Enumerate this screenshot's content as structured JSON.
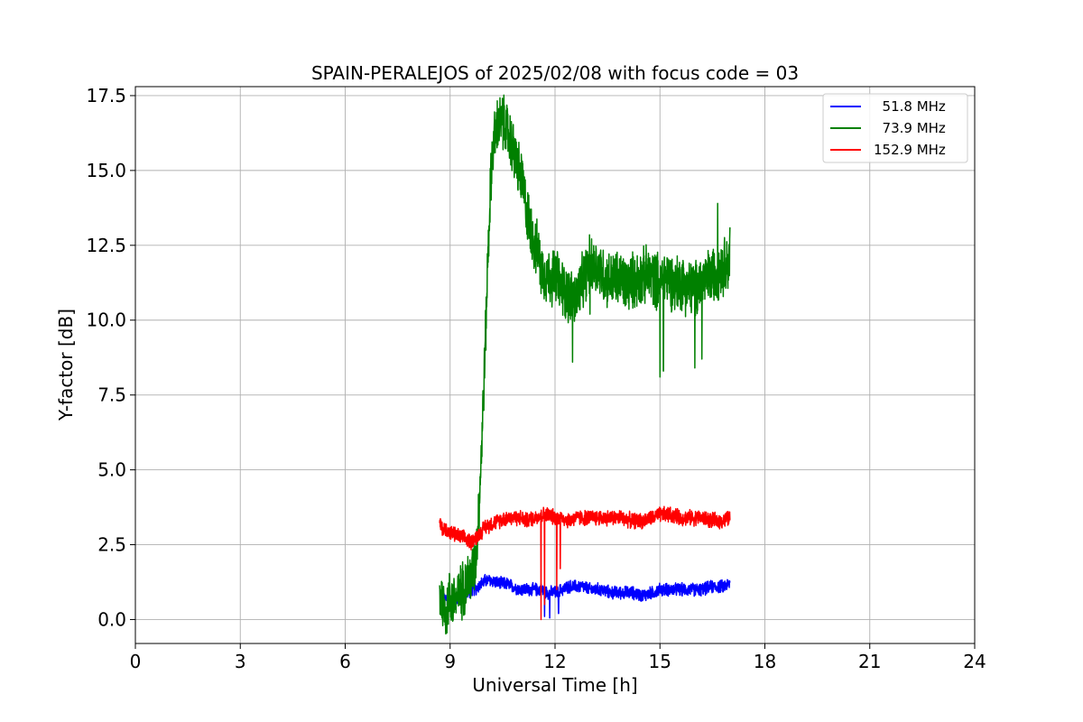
{
  "chart_data": {
    "type": "line",
    "title": "SPAIN-PERALEJOS of 2025/02/08 with focus code = 03",
    "xlabel": "Universal Time [h]",
    "ylabel": "Y-factor [dB]",
    "xlim": [
      0,
      24
    ],
    "ylim": [
      -0.8,
      17.8
    ],
    "xticks": [
      0,
      3,
      6,
      9,
      12,
      15,
      18,
      21,
      24
    ],
    "xtick_labels": [
      "0",
      "3",
      "6",
      "9",
      "12",
      "15",
      "18",
      "21",
      "24"
    ],
    "yticks": [
      0,
      2.5,
      5,
      7.5,
      10,
      12.5,
      15,
      17.5
    ],
    "ytick_labels": [
      "0.0",
      "2.5",
      "5.0",
      "7.5",
      "10.0",
      "12.5",
      "15.0",
      "17.5"
    ],
    "grid": true,
    "legend_position": "top-right",
    "series": [
      {
        "name": "  51.8 MHz",
        "color": "#0000ff",
        "x": [
          8.7,
          8.8,
          8.9,
          9.0,
          9.1,
          9.2,
          9.3,
          9.4,
          9.5,
          9.6,
          9.7,
          9.8,
          9.9,
          10.0,
          10.2,
          10.4,
          10.6,
          10.8,
          11.0,
          11.2,
          11.4,
          11.6,
          11.8,
          12.0,
          12.2,
          12.4,
          12.6,
          12.8,
          13.0,
          13.3,
          13.6,
          13.9,
          14.2,
          14.5,
          14.8,
          15.0,
          15.3,
          15.6,
          15.9,
          16.2,
          16.5,
          16.8,
          17.0
        ],
        "y": [
          0.9,
          0.8,
          0.7,
          0.5,
          0.6,
          0.7,
          0.9,
          0.8,
          0.9,
          1.0,
          1.0,
          1.1,
          1.2,
          1.3,
          1.3,
          1.2,
          1.2,
          1.1,
          1.0,
          1.0,
          1.0,
          1.0,
          0.9,
          0.9,
          1.0,
          1.1,
          1.1,
          1.1,
          1.0,
          1.0,
          0.9,
          0.9,
          0.9,
          0.8,
          0.9,
          1.0,
          1.0,
          1.0,
          1.0,
          1.0,
          1.1,
          1.1,
          1.2
        ],
        "noise": 0.25,
        "spikes": [
          {
            "x": 11.7,
            "y": 0.1
          },
          {
            "x": 11.85,
            "y": 0.05
          },
          {
            "x": 12.1,
            "y": 0.2
          }
        ]
      },
      {
        "name": "  73.9 MHz",
        "color": "#008000",
        "x": [
          8.7,
          8.8,
          8.9,
          9.0,
          9.1,
          9.2,
          9.3,
          9.4,
          9.5,
          9.6,
          9.7,
          9.75,
          9.8,
          9.85,
          9.9,
          9.95,
          10.0,
          10.05,
          10.1,
          10.15,
          10.2,
          10.3,
          10.4,
          10.5,
          10.6,
          10.7,
          10.8,
          10.9,
          11.0,
          11.1,
          11.2,
          11.3,
          11.4,
          11.5,
          11.6,
          11.8,
          12.0,
          12.2,
          12.4,
          12.6,
          12.8,
          13.0,
          13.2,
          13.4,
          13.6,
          13.8,
          14.0,
          14.2,
          14.4,
          14.6,
          14.8,
          15.0,
          15.2,
          15.4,
          15.6,
          15.8,
          16.0,
          16.2,
          16.4,
          16.6,
          16.8,
          17.0
        ],
        "y": [
          0.9,
          0.5,
          0.3,
          0.8,
          0.6,
          0.7,
          0.9,
          1.1,
          1.3,
          1.4,
          1.8,
          2.3,
          3.2,
          4.4,
          5.8,
          7.4,
          9.0,
          11.0,
          12.8,
          14.3,
          15.5,
          16.3,
          16.6,
          16.6,
          16.4,
          16.1,
          15.7,
          15.3,
          14.9,
          14.3,
          13.6,
          13.1,
          12.6,
          12.3,
          11.8,
          11.4,
          11.5,
          11.1,
          10.8,
          10.7,
          11.3,
          11.9,
          11.8,
          11.5,
          11.3,
          11.4,
          11.2,
          11.3,
          11.4,
          11.5,
          11.4,
          11.3,
          11.5,
          11.2,
          11.3,
          11.1,
          11.0,
          11.3,
          11.4,
          11.6,
          11.8,
          12.0
        ],
        "noise": 1.1,
        "spikes": [
          {
            "x": 12.5,
            "y": 8.6
          },
          {
            "x": 13.0,
            "y": 10.2
          },
          {
            "x": 15.0,
            "y": 8.1
          },
          {
            "x": 15.1,
            "y": 8.3
          },
          {
            "x": 16.0,
            "y": 8.4
          },
          {
            "x": 16.2,
            "y": 8.7
          },
          {
            "x": 16.65,
            "y": 13.9
          },
          {
            "x": 17.0,
            "y": 13.1
          }
        ]
      },
      {
        "name": "152.9 MHz",
        "color": "#ff0000",
        "x": [
          8.7,
          8.8,
          8.9,
          9.0,
          9.2,
          9.4,
          9.6,
          9.8,
          10.0,
          10.2,
          10.4,
          10.6,
          10.8,
          11.0,
          11.2,
          11.4,
          11.6,
          11.8,
          12.0,
          12.2,
          12.4,
          12.6,
          12.8,
          13.0,
          13.3,
          13.6,
          13.9,
          14.2,
          14.5,
          14.8,
          15.0,
          15.3,
          15.6,
          15.9,
          16.2,
          16.5,
          16.8,
          17.0
        ],
        "y": [
          3.2,
          3.0,
          3.0,
          2.9,
          2.8,
          2.7,
          2.6,
          2.8,
          3.1,
          3.2,
          3.3,
          3.4,
          3.4,
          3.4,
          3.3,
          3.4,
          3.5,
          3.5,
          3.4,
          3.4,
          3.3,
          3.4,
          3.4,
          3.4,
          3.4,
          3.4,
          3.4,
          3.3,
          3.3,
          3.4,
          3.5,
          3.5,
          3.4,
          3.4,
          3.4,
          3.3,
          3.3,
          3.4
        ],
        "noise": 0.3,
        "spikes": [
          {
            "x": 11.6,
            "y": 0.0
          },
          {
            "x": 11.7,
            "y": 0.5
          },
          {
            "x": 12.05,
            "y": 1.0
          },
          {
            "x": 12.15,
            "y": 1.7
          }
        ]
      }
    ]
  }
}
